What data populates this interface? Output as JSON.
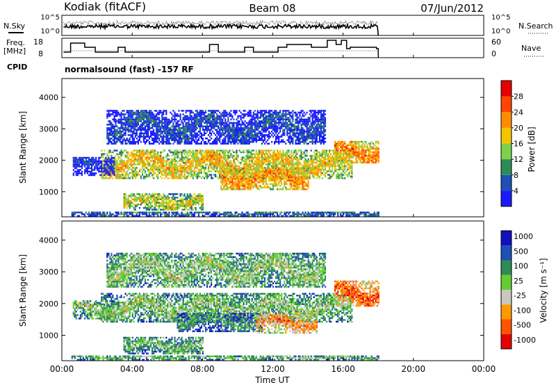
{
  "header": {
    "station": "Kodiak (fitACF)",
    "beam": "Beam 08",
    "date": "07/Jun/2012"
  },
  "noise_panel": {
    "left_label": "N.Sky",
    "left_ticks": [
      "10^5",
      "10^0"
    ],
    "right_ticks": [
      "10^5",
      "10^0"
    ],
    "right_label": "N.Search"
  },
  "freq_panel": {
    "left_label_1": "Freq.",
    "left_label_2": "[MHz]",
    "left_ticks": [
      "18",
      "8"
    ],
    "right_ticks": [
      "60",
      "0"
    ],
    "right_label": "Nave"
  },
  "cpid": {
    "label": "CPID",
    "text": "normalsound (fast) -157 RF"
  },
  "chart_data": [
    {
      "type": "heatmap",
      "name": "power",
      "ylabel": "Slant Range [km]",
      "yticks": [
        "1000",
        "2000",
        "3000",
        "4000"
      ],
      "ylim": [
        200,
        4600
      ],
      "xlim": [
        0,
        24
      ],
      "colorbar_label": "Power [dB]",
      "colorbar_ticks": [
        "4",
        "8",
        "12",
        "16",
        "20",
        "24",
        "28"
      ],
      "colors": [
        "#1a1aff",
        "#1f4fb5",
        "#2e8b57",
        "#7dd24a",
        "#f5c400",
        "#ff8c00",
        "#ff4500",
        "#e60000"
      ],
      "bands": [
        {
          "t0": 2.2,
          "t1": 16.5,
          "r0": 1400,
          "r1": 2300,
          "level": 0.62
        },
        {
          "t0": 9.0,
          "t1": 14.0,
          "r0": 1050,
          "r1": 1750,
          "level": 0.72
        },
        {
          "t0": 3.5,
          "t1": 8.0,
          "r0": 400,
          "r1": 900,
          "level": 0.55
        },
        {
          "t0": 15.5,
          "t1": 18.0,
          "r0": 1900,
          "r1": 2600,
          "level": 0.75
        },
        {
          "t0": 2.5,
          "t1": 15.0,
          "r0": 2500,
          "r1": 3600,
          "level": 0.2
        },
        {
          "t0": 0.5,
          "t1": 18.0,
          "r0": 200,
          "r1": 350,
          "level": 0.3
        },
        {
          "t0": 0.6,
          "t1": 3.0,
          "r0": 1500,
          "r1": 2100,
          "level": 0.15
        }
      ]
    },
    {
      "type": "heatmap",
      "name": "velocity",
      "ylabel": "Slant Range [km]",
      "yticks": [
        "1000",
        "2000",
        "3000",
        "4000"
      ],
      "ylim": [
        200,
        4600
      ],
      "xlim": [
        0,
        24
      ],
      "colorbar_label": "Velocity [m s⁻¹]",
      "colorbar_ticks": [
        "1000",
        "500",
        "100",
        "25",
        "-25",
        "-100",
        "-500",
        "-1000"
      ],
      "colors": [
        "#1010c0",
        "#1f4fb5",
        "#2e8b57",
        "#66cc33",
        "#c8c8c0",
        "#ff9900",
        "#ff5500",
        "#e60000"
      ],
      "bands": [
        {
          "t0": 2.2,
          "t1": 16.5,
          "r0": 1400,
          "r1": 2300,
          "level": 0.5
        },
        {
          "t0": 6.5,
          "t1": 11.5,
          "r0": 1100,
          "r1": 1700,
          "level": 0.35
        },
        {
          "t0": 11.0,
          "t1": 14.5,
          "r0": 1050,
          "r1": 1700,
          "level": 0.75
        },
        {
          "t0": 3.5,
          "t1": 8.0,
          "r0": 400,
          "r1": 900,
          "level": 0.45
        },
        {
          "t0": 15.5,
          "t1": 18.0,
          "r0": 1900,
          "r1": 2700,
          "level": 0.85
        },
        {
          "t0": 2.5,
          "t1": 15.0,
          "r0": 2500,
          "r1": 3600,
          "level": 0.5
        },
        {
          "t0": 0.5,
          "t1": 18.0,
          "r0": 200,
          "r1": 350,
          "level": 0.45
        },
        {
          "t0": 0.6,
          "t1": 3.0,
          "r0": 1500,
          "r1": 2100,
          "level": 0.5
        }
      ]
    }
  ],
  "xaxis": {
    "ticks": [
      "00:00",
      "04:00",
      "08:00",
      "12:00",
      "16:00",
      "20:00",
      "00:00"
    ],
    "label": "Time UT",
    "data_end_hour": 18
  }
}
